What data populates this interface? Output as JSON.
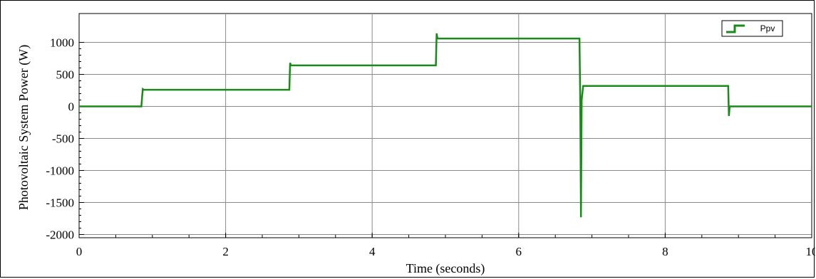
{
  "chart_data": {
    "type": "line",
    "title": "",
    "xlabel": "Time (seconds)",
    "ylabel": "Photovoltaic System Power (W)",
    "xlim": [
      0,
      10
    ],
    "ylim": [
      -2050,
      1450
    ],
    "xticks": [
      0,
      2,
      4,
      6,
      8,
      10
    ],
    "yticks": [
      1000,
      500,
      0,
      -500,
      -1000,
      -1500,
      -2000
    ],
    "grid": true,
    "legend": {
      "position": "top-right",
      "entries": [
        "Ppv"
      ]
    },
    "series": [
      {
        "name": "Ppv",
        "color": "#1a8a1a",
        "x": [
          0,
          0.85,
          0.86,
          0.87,
          0.88,
          2.87,
          2.88,
          2.89,
          2.9,
          4.87,
          4.88,
          4.89,
          4.9,
          6.83,
          6.84,
          6.85,
          6.86,
          6.88,
          6.9,
          8.86,
          8.87,
          8.88,
          8.9,
          10
        ],
        "y": [
          0,
          0,
          150,
          270,
          260,
          260,
          680,
          640,
          640,
          640,
          1140,
          1070,
          1060,
          1060,
          100,
          -1730,
          100,
          320,
          320,
          320,
          -150,
          0,
          0,
          0
        ]
      }
    ]
  }
}
